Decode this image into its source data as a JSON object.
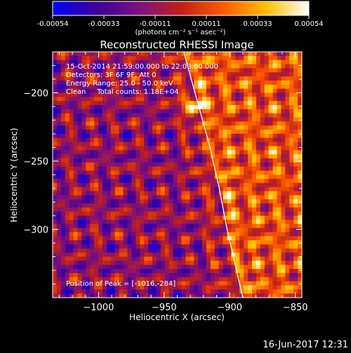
{
  "colorbar": {
    "tick_labels": [
      "-0.00054",
      "-0.00033",
      "-0.00011",
      "0.00011",
      "0.00033",
      "0.00054"
    ],
    "unit_label": "(photons cm⁻² s⁻¹ asec⁻²)",
    "colors": [
      "#0000ff",
      "#3a0099",
      "#7a1080",
      "#c0201a",
      "#ff5a00",
      "#ffc000",
      "#ffffff"
    ]
  },
  "chart_data": {
    "type": "heatmap",
    "title": "Reconstructed RHESSI Image",
    "xlabel": "Heliocentric X (arcsec)",
    "ylabel": "Heliocentric Y (arcsec)",
    "xlim": [
      -1035,
      -845
    ],
    "ylim": [
      -350,
      -170
    ],
    "x_ticks": [
      -1000,
      -950,
      -900,
      -850
    ],
    "y_ticks": [
      -200,
      -250,
      -300
    ],
    "x_tick_labels": [
      "−1000",
      "−950",
      "−900",
      "−850"
    ],
    "y_tick_labels": [
      "−200",
      "−250",
      "−300"
    ],
    "value_range": [
      -0.00054,
      0.00054
    ],
    "peak": [
      -1016,
      -284
    ],
    "limb_curve": [
      [
        -935,
        -170
      ],
      [
        -925,
        -205
      ],
      [
        -915,
        -240
      ],
      [
        -908,
        -270
      ],
      [
        -902,
        -300
      ],
      [
        -896,
        -325
      ],
      [
        -890,
        -350
      ]
    ],
    "info_lines": [
      "15-Oct-2014 21:59:00.000 to 22:03:00.000",
      "Detectors: 3F 6F 9F, Att 0",
      "Energy Range: 25.0 - 50.0 keV",
      "Clean     Total counts: 1.18E+04"
    ],
    "peak_label": "Position of Peak = [-1016,-284]"
  },
  "footer": {
    "timestamp": "16-Jun-2017 12:31"
  }
}
